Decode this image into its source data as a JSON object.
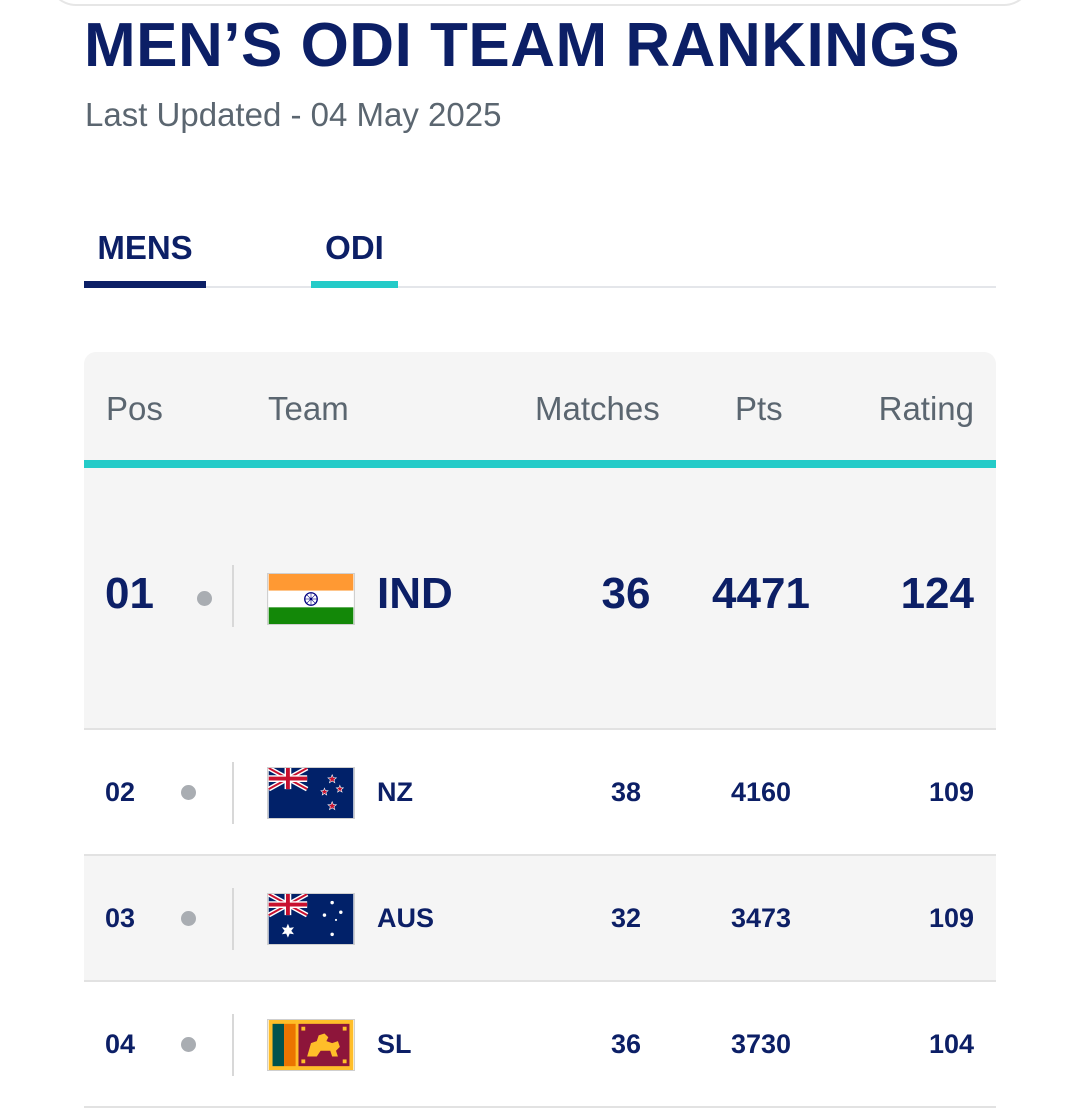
{
  "header": {
    "title": "MEN’S ODI TEAM RANKINGS",
    "subtitle": "Last Updated - 04 May 2025"
  },
  "tabs": [
    {
      "label": "MENS",
      "active_color": "#0c1f66"
    },
    {
      "label": "ODI",
      "active_color": "#24cbc8"
    }
  ],
  "table": {
    "columns": {
      "pos": "Pos",
      "team": "Team",
      "matches": "Matches",
      "pts": "Pts",
      "rating": "Rating"
    },
    "rows": [
      {
        "pos": "01",
        "team": "IND",
        "flag": "india-flag-icon",
        "matches": "36",
        "pts": "4471",
        "rating": "124"
      },
      {
        "pos": "02",
        "team": "NZ",
        "flag": "new-zealand-flag-icon",
        "matches": "38",
        "pts": "4160",
        "rating": "109"
      },
      {
        "pos": "03",
        "team": "AUS",
        "flag": "australia-flag-icon",
        "matches": "32",
        "pts": "3473",
        "rating": "109"
      },
      {
        "pos": "04",
        "team": "SL",
        "flag": "sri-lanka-flag-icon",
        "matches": "36",
        "pts": "3730",
        "rating": "104"
      }
    ]
  },
  "colors": {
    "primary": "#0c1f66",
    "accent": "#24cbc8",
    "muted_text": "#5b6670",
    "row_alt_bg": "#f5f5f5"
  }
}
